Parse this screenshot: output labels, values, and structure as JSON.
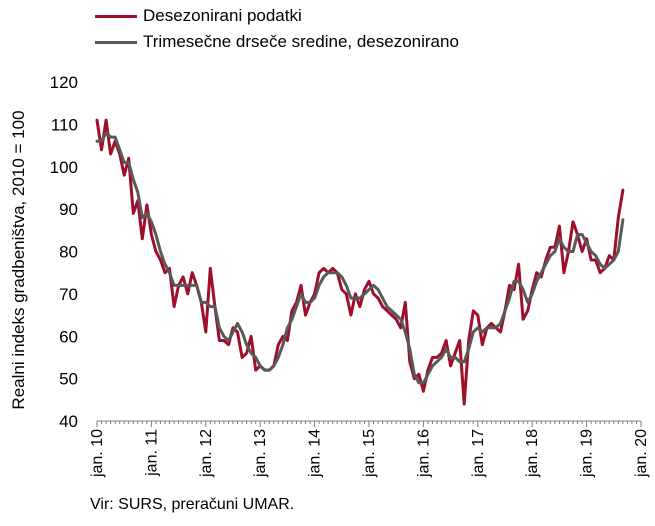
{
  "chart_data": {
    "type": "line",
    "title": "",
    "ylabel": "Realni indeks gradbeništva, 2010 = 100",
    "xlabel": "",
    "ylim": [
      40,
      120
    ],
    "yticks": [
      40,
      50,
      60,
      70,
      80,
      90,
      100,
      110,
      120
    ],
    "x_tick_labels": [
      "jan. 10",
      "jan. 11",
      "jan. 12",
      "jan. 13",
      "jan. 14",
      "jan. 15",
      "jan. 16",
      "jan. 17",
      "jan. 18",
      "jan. 19",
      "jan. 20"
    ],
    "x_start": "2010-01",
    "x_end": "2020-01",
    "frequency": "monthly",
    "grid": false,
    "legend_position": "top-left",
    "series": [
      {
        "name": "Desezonirani podatki",
        "color": "#9e0f2a",
        "values": [
          111,
          104,
          111,
          103,
          106,
          103,
          98,
          102,
          89,
          92,
          83,
          91,
          84,
          80,
          78,
          75,
          76,
          67,
          72,
          74,
          70,
          75,
          72,
          68,
          61,
          76,
          67,
          59,
          59,
          58,
          62,
          61,
          55,
          56,
          60,
          52,
          53,
          52,
          52,
          53,
          58,
          60,
          59,
          66,
          68,
          72,
          65,
          68,
          70,
          75,
          76,
          75,
          76,
          75,
          71,
          70,
          65,
          70,
          67,
          71,
          73,
          70,
          69,
          67,
          66,
          65,
          64,
          62,
          68,
          54,
          50,
          51,
          47,
          52,
          55,
          55,
          56,
          59,
          53,
          56,
          59,
          44,
          59,
          66,
          65,
          58,
          62,
          63,
          62,
          61,
          66,
          72,
          71,
          77,
          64,
          66,
          71,
          75,
          74,
          78,
          81,
          81,
          86,
          75,
          80,
          87,
          84,
          80,
          83,
          78,
          78,
          75,
          76,
          79,
          78,
          88,
          94.5
        ]
      },
      {
        "name": "Trimesečne drseče sredine, desezonirano",
        "color": "#595959",
        "values": [
          106,
          106,
          108,
          107,
          107,
          104,
          101,
          101,
          97,
          94,
          88,
          89,
          87,
          84,
          80,
          77,
          75,
          72,
          72,
          72,
          72,
          72,
          72,
          68,
          68,
          67,
          67,
          62,
          60,
          59,
          61,
          63,
          61,
          58,
          56,
          55,
          53,
          52,
          52,
          53,
          55,
          58,
          62,
          64,
          67,
          70,
          68,
          68,
          69,
          72,
          74,
          75,
          75,
          75,
          74,
          72,
          69,
          69,
          69,
          70,
          71,
          72,
          71,
          69,
          67,
          66,
          65,
          64,
          61,
          57,
          51,
          49,
          49,
          51,
          53,
          54,
          55,
          57,
          55,
          55,
          54,
          54,
          57,
          61,
          62,
          61,
          62,
          62,
          62,
          63,
          66,
          69,
          73,
          73,
          71,
          68,
          70,
          73,
          75,
          77,
          79,
          80,
          83,
          81,
          80,
          80,
          84,
          84,
          82,
          80,
          79,
          77,
          76,
          77,
          78,
          80,
          87.5
        ]
      }
    ],
    "source_note": "Vir: SURS, preračuni UMAR."
  }
}
